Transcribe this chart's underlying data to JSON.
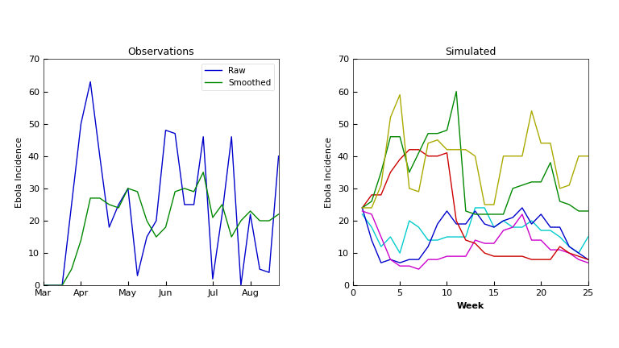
{
  "obs_title": "Observations",
  "sim_title": "Simulated",
  "obs_ylabel": "Ebola Incidence",
  "sim_ylabel": "Ebola Incidence",
  "sim_xlabel": "Week",
  "obs_xticks": [
    "Mar",
    "Apr",
    "May",
    "Jun",
    "Jul",
    "Aug"
  ],
  "obs_xtick_pos": [
    0,
    4,
    9,
    13,
    18,
    22
  ],
  "obs_ylim": [
    0,
    70
  ],
  "sim_ylim": [
    0,
    70
  ],
  "sim_xlim": [
    0,
    25
  ],
  "raw_color": "#0000cc",
  "smoothed_color": "#008800",
  "raw_data": [
    0,
    0,
    0,
    25,
    50,
    63,
    40,
    18,
    25,
    30,
    3,
    15,
    20,
    48,
    47,
    25,
    25,
    46,
    2,
    22,
    46,
    0,
    22,
    5,
    4,
    40
  ],
  "smoothed_data": [
    0,
    0,
    0,
    5,
    14,
    27,
    27,
    25,
    24,
    30,
    29,
    20,
    15,
    18,
    29,
    30,
    29,
    35,
    21,
    25,
    15,
    20,
    23,
    20,
    20,
    22
  ],
  "sim_series": [
    {
      "color": "#00cccc",
      "data": [
        22,
        18,
        12,
        15,
        10,
        20,
        18,
        14,
        14,
        15,
        15,
        15,
        24,
        24,
        18,
        20,
        18,
        18,
        20,
        17,
        17,
        15,
        12,
        10,
        15
      ]
    },
    {
      "color": "#0000cc",
      "data": [
        24,
        14,
        7,
        8,
        7,
        8,
        8,
        12,
        19,
        23,
        19,
        19,
        23,
        19,
        18,
        20,
        21,
        24,
        19,
        22,
        18,
        18,
        12,
        10,
        8
      ]
    },
    {
      "color": "#cc00cc",
      "data": [
        23,
        22,
        15,
        8,
        6,
        6,
        5,
        8,
        8,
        9,
        9,
        9,
        14,
        13,
        13,
        17,
        18,
        22,
        14,
        14,
        11,
        11,
        10,
        8,
        7
      ]
    },
    {
      "color": "#cc0000",
      "data": [
        24,
        28,
        28,
        35,
        39,
        42,
        42,
        40,
        40,
        41,
        20,
        14,
        13,
        10,
        9,
        9,
        9,
        9,
        8,
        8,
        8,
        12,
        10,
        9,
        8
      ]
    },
    {
      "color": "#008800",
      "data": [
        24,
        26,
        35,
        46,
        46,
        35,
        41,
        47,
        47,
        48,
        60,
        23,
        22,
        22,
        22,
        22,
        30,
        31,
        32,
        32,
        38,
        26,
        25,
        23,
        23
      ]
    },
    {
      "color": "#aaaa00",
      "data": [
        24,
        24,
        31,
        52,
        59,
        30,
        29,
        44,
        45,
        42,
        42,
        42,
        40,
        25,
        25,
        40,
        40,
        40,
        54,
        44,
        44,
        30,
        31,
        40,
        40
      ]
    }
  ],
  "figure_width": 7.68,
  "figure_height": 4.32,
  "dpi": 100
}
